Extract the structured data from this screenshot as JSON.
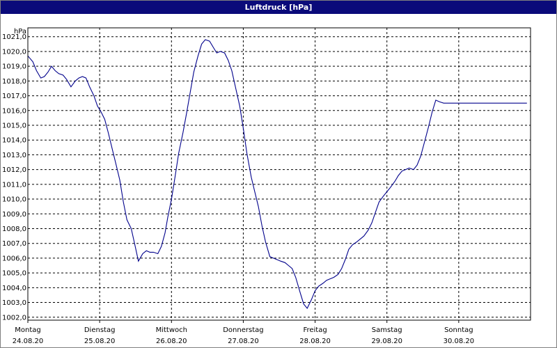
{
  "chart_data": {
    "type": "line",
    "title": "Luftdruck [hPa]",
    "ylabel": "hPa",
    "ylim": [
      1001.8,
      1021.6
    ],
    "yticks": [
      "1002,0",
      "1003,0",
      "1004,0",
      "1005,0",
      "1006,0",
      "1007,0",
      "1008,0",
      "1009,0",
      "1010,0",
      "1011,0",
      "1012,0",
      "1013,0",
      "1014,0",
      "1015,0",
      "1016,0",
      "1017,0",
      "1018,0",
      "1019,0",
      "1020,0",
      "1021,0"
    ],
    "yticks_values": [
      1002,
      1003,
      1004,
      1005,
      1006,
      1007,
      1008,
      1009,
      1010,
      1011,
      1012,
      1013,
      1014,
      1015,
      1016,
      1017,
      1018,
      1019,
      1020,
      1021
    ],
    "xlim": [
      0,
      7
    ],
    "xticks": [
      {
        "day": "Montag",
        "date": "24.08.20",
        "x": 0
      },
      {
        "day": "Dienstag",
        "date": "25.08.20",
        "x": 1
      },
      {
        "day": "Mittwoch",
        "date": "26.08.20",
        "x": 2
      },
      {
        "day": "Donnerstag",
        "date": "27.08.20",
        "x": 3
      },
      {
        "day": "Freitag",
        "date": "28.08.20",
        "x": 4
      },
      {
        "day": "Samstag",
        "date": "29.08.20",
        "x": 5
      },
      {
        "day": "Sonntag",
        "date": "30.08.20",
        "x": 6
      }
    ],
    "grid": true,
    "series": [
      {
        "color": "#00008b",
        "x": [
          0,
          0.07,
          0.12,
          0.18,
          0.23,
          0.28,
          0.33,
          0.38,
          0.43,
          0.49,
          0.54,
          0.6,
          0.66,
          0.71,
          0.76,
          0.81,
          0.86,
          0.92,
          0.97,
          1.02,
          1.07,
          1.12,
          1.18,
          1.23,
          1.28,
          1.33,
          1.38,
          1.44,
          1.49,
          1.54,
          1.6,
          1.65,
          1.7,
          1.75,
          1.81,
          1.86,
          1.91,
          1.95,
          2.0,
          2.05,
          2.1,
          2.16,
          2.21,
          2.26,
          2.31,
          2.37,
          2.42,
          2.47,
          2.53,
          2.58,
          2.63,
          2.68,
          2.74,
          2.79,
          2.84,
          2.89,
          2.95,
          3.0,
          3.05,
          3.11,
          3.16,
          3.21,
          3.26,
          3.31,
          3.37,
          3.42,
          3.47,
          3.52,
          3.58,
          3.63,
          3.68,
          3.73,
          3.79,
          3.84,
          3.89,
          3.95,
          4.0,
          4.05,
          4.11,
          4.16,
          4.21,
          4.26,
          4.32,
          4.37,
          4.42,
          4.47,
          4.52,
          4.58,
          4.63,
          4.68,
          4.74,
          4.79,
          4.84,
          4.89,
          4.95,
          5.0,
          5.05,
          5.11,
          5.16,
          5.21,
          5.26,
          5.31,
          5.37,
          5.42,
          5.47,
          5.52,
          5.58,
          5.63,
          5.68,
          5.73,
          5.79,
          5.84,
          5.89,
          5.95,
          6.0,
          6.05,
          6.11,
          6.16,
          6.21,
          6.26,
          6.32,
          6.37,
          6.42,
          6.47,
          6.53,
          6.58,
          6.63,
          6.68,
          6.74,
          6.79,
          6.84,
          6.89,
          6.95,
          7.0
        ],
        "y": [
          1019.7,
          1019.3,
          1018.7,
          1018.2,
          1018.3,
          1018.6,
          1019.0,
          1018.7,
          1018.5,
          1018.4,
          1018.1,
          1017.6,
          1018.0,
          1018.2,
          1018.3,
          1018.2,
          1017.6,
          1017.0,
          1016.3,
          1015.9,
          1015.4,
          1014.5,
          1013.3,
          1012.3,
          1011.3,
          1009.8,
          1008.6,
          1008.0,
          1006.9,
          1005.8,
          1006.3,
          1006.5,
          1006.4,
          1006.4,
          1006.3,
          1006.8,
          1007.7,
          1008.8,
          1010.0,
          1011.5,
          1013.1,
          1014.5,
          1015.8,
          1017.2,
          1018.6,
          1019.7,
          1020.5,
          1020.8,
          1020.7,
          1020.3,
          1019.9,
          1020.0,
          1019.9,
          1019.4,
          1018.7,
          1017.6,
          1016.3,
          1014.8,
          1013.1,
          1011.5,
          1010.5,
          1009.5,
          1008.2,
          1007.1,
          1006.1,
          1006.0,
          1005.9,
          1005.8,
          1005.7,
          1005.5,
          1005.3,
          1004.7,
          1003.7,
          1002.9,
          1002.6,
          1003.2,
          1003.8,
          1004.1,
          1004.3,
          1004.5,
          1004.6,
          1004.7,
          1004.9,
          1005.3,
          1005.9,
          1006.6,
          1006.9,
          1007.1,
          1007.3,
          1007.5,
          1007.9,
          1008.4,
          1009.1,
          1009.8,
          1010.2,
          1010.5,
          1010.8,
          1011.2,
          1011.6,
          1011.9,
          1012.0,
          1012.1,
          1012.0,
          1012.3,
          1012.9,
          1013.8,
          1014.9,
          1015.9,
          1016.7,
          1016.6,
          1016.5,
          1016.5,
          1016.5,
          1016.5,
          1016.5,
          1016.5,
          1016.5,
          1016.5,
          1016.5,
          1016.5,
          1016.5,
          1016.5,
          1016.5,
          1016.5,
          1016.5,
          1016.5,
          1016.5,
          1016.5,
          1016.5,
          1016.5,
          1016.5,
          1016.5,
          1016.5,
          1016.5
        ]
      }
    ]
  }
}
